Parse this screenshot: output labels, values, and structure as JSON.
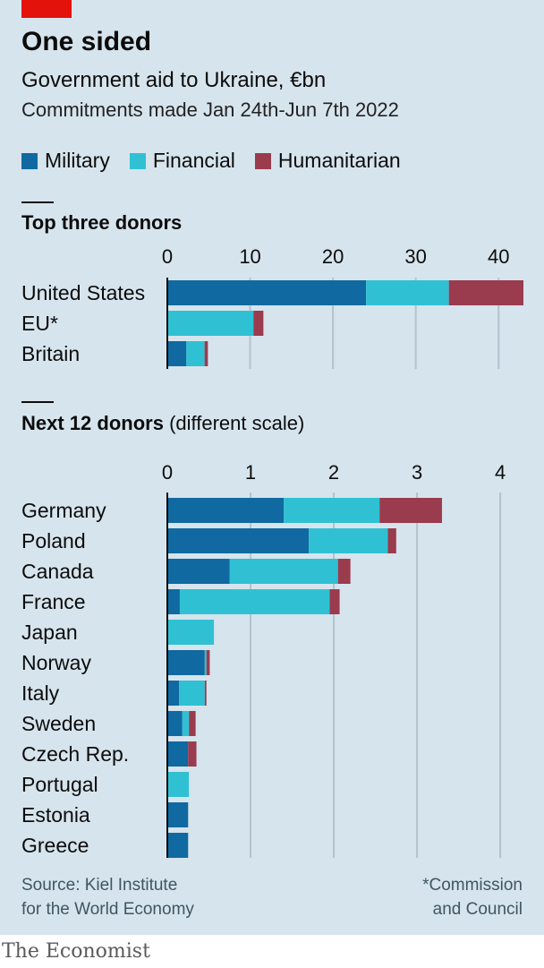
{
  "title": "One sided",
  "subtitle": "Government aid to Ukraine, €bn",
  "subtitle2": "Commitments made Jan 24th-Jun 7th 2022",
  "legend": [
    {
      "label": "Military",
      "color": "#1069a0"
    },
    {
      "label": "Financial",
      "color": "#2fc1d3"
    },
    {
      "label": "Humanitarian",
      "color": "#9b3b4e"
    }
  ],
  "source_lines": [
    "Source: Kiel Institute",
    "for the World Economy"
  ],
  "note_lines": [
    "*Commission",
    "and Council"
  ],
  "brand": "The Economist",
  "chart_data": [
    {
      "type": "bar",
      "orientation": "horizontal",
      "stacked": true,
      "title": "Top three donors",
      "categories": [
        "United States",
        "EU*",
        "Britain"
      ],
      "series": [
        {
          "name": "Military",
          "values": [
            24.0,
            0.0,
            2.3
          ]
        },
        {
          "name": "Financial",
          "values": [
            10.0,
            10.4,
            2.2
          ]
        },
        {
          "name": "Humanitarian",
          "values": [
            9.0,
            1.2,
            0.4
          ]
        }
      ],
      "xlim": [
        0,
        43
      ],
      "xticks": [
        0,
        10,
        20,
        30,
        40
      ],
      "grid": true
    },
    {
      "type": "bar",
      "orientation": "horizontal",
      "stacked": true,
      "title": "Next 12 donors",
      "title_note": "(different scale)",
      "categories": [
        "Germany",
        "Poland",
        "Canada",
        "France",
        "Japan",
        "Norway",
        "Italy",
        "Sweden",
        "Czech Rep.",
        "Portugal",
        "Estonia",
        "Greece"
      ],
      "series": [
        {
          "name": "Military",
          "values": [
            1.4,
            1.7,
            0.75,
            0.15,
            0.0,
            0.45,
            0.14,
            0.18,
            0.25,
            0.0,
            0.25,
            0.25
          ]
        },
        {
          "name": "Financial",
          "values": [
            1.15,
            0.95,
            1.3,
            1.8,
            0.56,
            0.02,
            0.31,
            0.08,
            0.0,
            0.26,
            0.0,
            0.0
          ]
        },
        {
          "name": "Humanitarian",
          "values": [
            0.75,
            0.1,
            0.15,
            0.12,
            0.0,
            0.04,
            0.02,
            0.08,
            0.1,
            0.0,
            0.0,
            0.0
          ]
        }
      ],
      "xlim": [
        0,
        4.3
      ],
      "xticks": [
        0,
        1,
        2,
        3,
        4
      ],
      "grid": true
    }
  ]
}
